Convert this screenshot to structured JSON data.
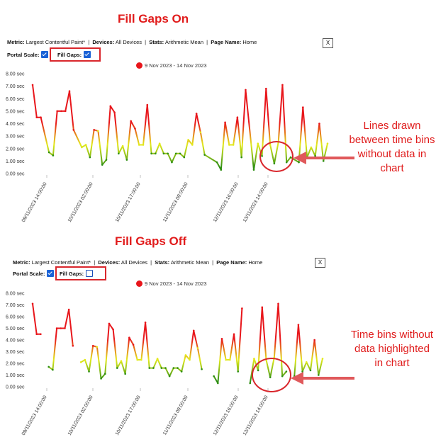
{
  "panels": [
    {
      "title": "Fill Gaps On",
      "metric_label": "Metric:",
      "metric_value": "Largest Contentful Paint*",
      "devices_label": "Devices:",
      "devices_value": "All Devices",
      "stats_label": "Stats:",
      "stats_value": "Arithmetic Mean",
      "page_label": "Page Name:",
      "page_value": "Home",
      "close_label": "X",
      "portal_scale_label": "Portal Scale:",
      "portal_scale_checked": true,
      "fill_gaps_label": "Fill Gaps:",
      "fill_gaps_checked": true,
      "legend_label": "9 Nov 2023 - 14 Nov 2023",
      "annotation": "Lines drawn between time bins without data in chart"
    },
    {
      "title": "Fill Gaps Off",
      "metric_label": "Metric:",
      "metric_value": "Largest Contentful Paint*",
      "devices_label": "Devices:",
      "devices_value": "All Devices",
      "stats_label": "Stats:",
      "stats_value": "Arithmetic Mean",
      "page_label": "Page Name:",
      "page_value": "Home",
      "close_label": "X",
      "portal_scale_label": "Portal Scale:",
      "portal_scale_checked": true,
      "fill_gaps_label": "Fill Gaps:",
      "fill_gaps_checked": false,
      "legend_label": "9 Nov 2023 - 14 Nov 2023",
      "annotation": "Time bins without data highlighted in chart"
    }
  ],
  "colors": {
    "title": "#e11b1b",
    "highlight": "#d9262c",
    "arrow": "#e0595b",
    "high": "#e8161b",
    "mid": "#e3ea1c",
    "low": "#2f8f14"
  },
  "chart_data": [
    {
      "type": "line",
      "fill_gaps": true,
      "ylim": [
        0,
        8
      ],
      "yticks": [
        "0.00 sec",
        "1.00 sec",
        "2.00 sec",
        "3.00 sec",
        "4.00 sec",
        "5.00 sec",
        "6.00 sec",
        "7.00 sec",
        "8.00 sec"
      ],
      "xticks": [
        "09/11/2023 14:00:00",
        "10/11/2023 02:00:00",
        "10/11/2023 17:00:00",
        "11/11/2023 09:00:00",
        "12/11/2023 16:00:00",
        "13/11/2023 14:00:00"
      ],
      "series": [
        {
          "name": "9 Nov 2023 - 14 Nov 2023",
          "values": [
            7.1,
            4.5,
            4.5,
            null,
            1.7,
            1.45,
            5.0,
            5.0,
            5.0,
            6.6,
            3.5,
            null,
            2.1,
            2.3,
            1.3,
            3.5,
            3.4,
            0.7,
            1.1,
            5.4,
            4.9,
            1.6,
            2.2,
            1.1,
            4.2,
            3.6,
            2.3,
            2.3,
            5.5,
            1.6,
            1.6,
            2.4,
            1.6,
            1.6,
            0.9,
            1.6,
            1.6,
            1.3,
            2.7,
            2.3,
            4.8,
            3.3,
            1.5,
            null,
            null,
            0.9,
            0.3,
            4.1,
            2.3,
            2.3,
            4.5,
            1.3,
            6.7,
            null,
            0.3,
            2.4,
            1.4,
            6.8,
            2.3,
            0.8,
            2.5,
            7.1,
            0.9,
            1.3,
            null,
            0.9,
            5.3,
            1.3,
            2.1,
            1.4,
            4.0,
            1.0,
            2.4
          ]
        }
      ]
    },
    {
      "type": "line",
      "fill_gaps": false,
      "ylim": [
        0,
        8
      ],
      "yticks": [
        "0.00 sec",
        "1.00 sec",
        "2.00 sec",
        "3.00 sec",
        "4.00 sec",
        "5.00 sec",
        "6.00 sec",
        "7.00 sec",
        "8.00 sec"
      ],
      "xticks": [
        "09/11/2023 14:00:00",
        "10/11/2023 02:00:00",
        "10/11/2023 17:00:00",
        "11/11/2023 09:00:00",
        "12/11/2023 16:00:00",
        "13/11/2023 14:00:00"
      ],
      "series": [
        {
          "name": "9 Nov 2023 - 14 Nov 2023",
          "values": [
            7.1,
            4.5,
            4.5,
            null,
            1.7,
            1.45,
            5.0,
            5.0,
            5.0,
            6.6,
            3.5,
            null,
            2.1,
            2.3,
            1.3,
            3.5,
            3.4,
            0.7,
            1.1,
            5.4,
            4.9,
            1.6,
            2.2,
            1.1,
            4.2,
            3.6,
            2.3,
            2.3,
            5.5,
            1.6,
            1.6,
            2.4,
            1.6,
            1.6,
            0.9,
            1.6,
            1.6,
            1.3,
            2.7,
            2.3,
            4.8,
            3.3,
            1.5,
            null,
            null,
            0.9,
            0.3,
            4.1,
            2.3,
            2.3,
            4.5,
            1.3,
            6.7,
            null,
            0.3,
            2.4,
            1.4,
            6.8,
            2.3,
            0.8,
            2.5,
            7.1,
            0.9,
            1.3,
            null,
            0.9,
            5.3,
            1.3,
            2.1,
            1.4,
            4.0,
            1.0,
            2.4
          ]
        }
      ]
    }
  ]
}
